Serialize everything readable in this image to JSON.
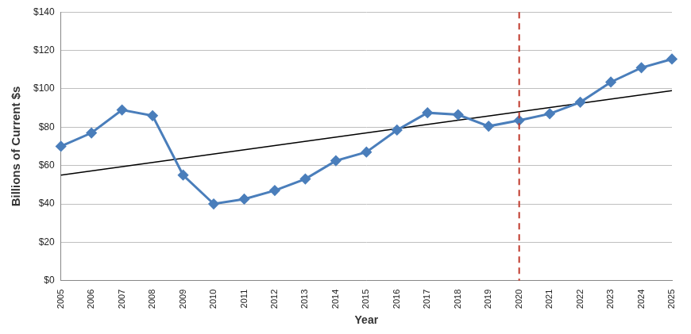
{
  "chart_data": {
    "type": "line",
    "x_label": "Year",
    "y_label": "Billions of Current $s",
    "categories": [
      "2005",
      "2006",
      "2007",
      "2008",
      "2009",
      "2010",
      "2011",
      "2012",
      "2013",
      "2014",
      "2015",
      "2016",
      "2017",
      "2018",
      "2019",
      "2020",
      "2021",
      "2022",
      "2023",
      "2024",
      "2025"
    ],
    "series": [
      {
        "color": "#4a7ebb",
        "marker": "diamond",
        "line_style": "solid",
        "values": [
          70,
          77,
          89,
          86,
          55,
          40,
          42.5,
          47,
          53,
          62.5,
          67,
          78.5,
          87.5,
          86.5,
          80.5,
          83.5,
          87,
          93,
          103.5,
          111,
          115.5
        ]
      },
      {
        "color": "#000000",
        "marker": "none",
        "line_style": "solid",
        "values": [
          55,
          null,
          null,
          null,
          null,
          null,
          null,
          null,
          null,
          null,
          null,
          null,
          null,
          null,
          null,
          null,
          null,
          null,
          null,
          null,
          99
        ]
      }
    ],
    "ylim": [
      0,
      140
    ],
    "yticks": [
      {
        "value": 0,
        "label": "$0"
      },
      {
        "value": 20,
        "label": "$20"
      },
      {
        "value": 40,
        "label": "$40"
      },
      {
        "value": 60,
        "label": "$60"
      },
      {
        "value": 80,
        "label": "$80"
      },
      {
        "value": 100,
        "label": "$100"
      },
      {
        "value": 120,
        "label": "$120"
      },
      {
        "value": 140,
        "label": "$140"
      }
    ],
    "grid": true,
    "vertical_lines": [
      {
        "x": "2020",
        "color": "#c0392b",
        "line_style": "dashed"
      }
    ]
  }
}
